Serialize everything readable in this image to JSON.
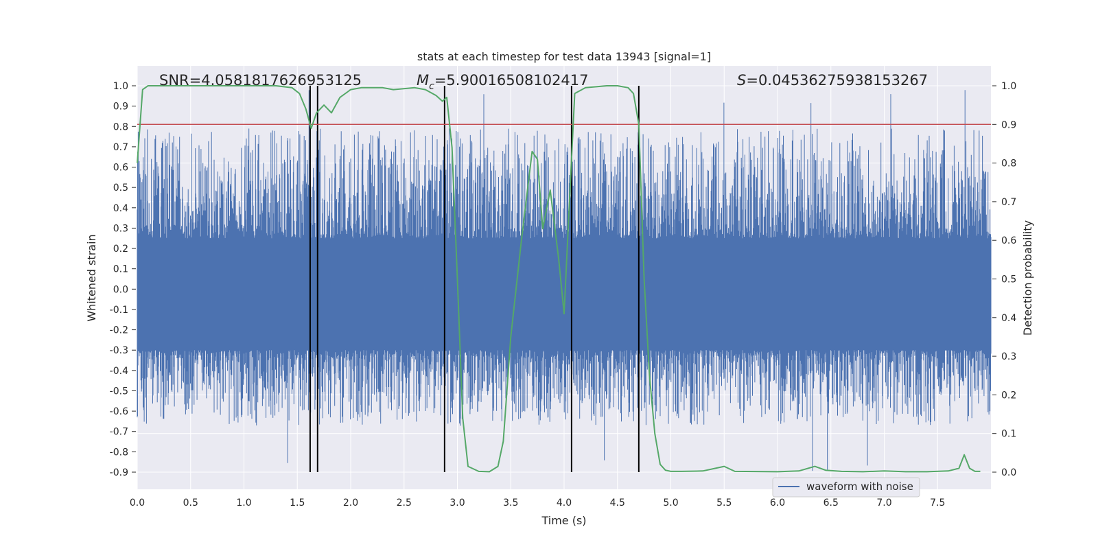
{
  "chart_data": {
    "type": "line",
    "title": "stats at each timestep for test data 13943 [signal=1]",
    "xlabel": "Time (s)",
    "ylabel": "Whitened strain",
    "y2label": "Detection probability",
    "xlim": [
      0.0,
      8.0
    ],
    "ylim": [
      -0.9,
      1.0
    ],
    "y2lim": [
      0.0,
      1.0
    ],
    "xticks": [
      "0.0",
      "0.5",
      "1.0",
      "1.5",
      "2.0",
      "2.5",
      "3.0",
      "3.5",
      "4.0",
      "4.5",
      "5.0",
      "5.5",
      "6.0",
      "6.5",
      "7.0",
      "7.5"
    ],
    "yticks": [
      "1.0",
      "0.9",
      "0.8",
      "0.7",
      "0.6",
      "0.5",
      "0.4",
      "0.3",
      "0.2",
      "0.1",
      "0.0",
      "-0.1",
      "-0.2",
      "-0.3",
      "-0.4",
      "-0.5",
      "-0.6",
      "-0.7",
      "-0.8",
      "-0.9"
    ],
    "y2ticks": [
      "1.0",
      "0.9",
      "0.8",
      "0.7",
      "0.6",
      "0.5",
      "0.4",
      "0.3",
      "0.2",
      "0.1",
      "0.0"
    ],
    "grid": true,
    "legend": {
      "placement": "bottom-right",
      "entries": [
        "waveform with noise"
      ]
    },
    "annotations": {
      "snr": "SNR=4.0581817626953125",
      "mc_symbol": "M",
      "mc_sub": "c",
      "mc_value": "=5.90016508102417",
      "s_symbol": "S",
      "s_value": "=0.04536275938153267"
    },
    "threshold": 0.9,
    "vlines": [
      1.62,
      1.69,
      2.88,
      4.07,
      4.7
    ],
    "colors": {
      "waveform": "#4c72b0",
      "probability": "#55a868",
      "threshold": "#c44e52",
      "vlines": "#000000",
      "axes_bg": "#eaeaf2",
      "grid": "#ffffff"
    },
    "waveform": {
      "name": "waveform with noise",
      "x_range": [
        0.0,
        8.0
      ],
      "envelope_upper": 0.25,
      "envelope_lower": -0.3,
      "peak_max": 1.0,
      "peak_min": -0.9
    },
    "series": [
      {
        "name": "",
        "x": [
          0.0,
          0.05,
          0.1,
          0.2,
          0.5,
          1.0,
          1.3,
          1.45,
          1.52,
          1.58,
          1.63,
          1.68,
          1.75,
          1.82,
          1.9,
          2.0,
          2.1,
          2.3,
          2.4,
          2.6,
          2.7,
          2.8,
          2.86,
          2.9,
          2.95,
          3.0,
          3.05,
          3.1,
          3.2,
          3.3,
          3.38,
          3.43,
          3.5,
          3.6,
          3.7,
          3.75,
          3.8,
          3.87,
          3.95,
          4.0,
          4.05,
          4.1,
          4.2,
          4.4,
          4.5,
          4.6,
          4.65,
          4.7,
          4.75,
          4.8,
          4.85,
          4.9,
          4.95,
          5.0,
          5.1,
          5.3,
          5.5,
          5.6,
          6.0,
          6.2,
          6.35,
          6.45,
          6.6,
          6.8,
          7.0,
          7.2,
          7.4,
          7.6,
          7.7,
          7.75,
          7.8,
          7.85,
          7.9
        ],
        "y": [
          0.8,
          0.99,
          1.0,
          1.0,
          1.0,
          1.0,
          1.0,
          0.995,
          0.98,
          0.94,
          0.89,
          0.93,
          0.95,
          0.93,
          0.97,
          0.99,
          0.995,
          0.995,
          0.99,
          0.995,
          0.99,
          0.975,
          0.96,
          0.97,
          0.84,
          0.5,
          0.14,
          0.015,
          0.002,
          0.001,
          0.015,
          0.08,
          0.35,
          0.6,
          0.83,
          0.81,
          0.63,
          0.73,
          0.55,
          0.41,
          0.7,
          0.98,
          0.995,
          1.0,
          1.0,
          0.995,
          0.98,
          0.9,
          0.5,
          0.25,
          0.1,
          0.02,
          0.005,
          0.002,
          0.002,
          0.003,
          0.015,
          0.002,
          0.001,
          0.003,
          0.015,
          0.005,
          0.002,
          0.001,
          0.003,
          0.001,
          0.001,
          0.003,
          0.01,
          0.045,
          0.01,
          0.002,
          0.002
        ]
      }
    ]
  }
}
